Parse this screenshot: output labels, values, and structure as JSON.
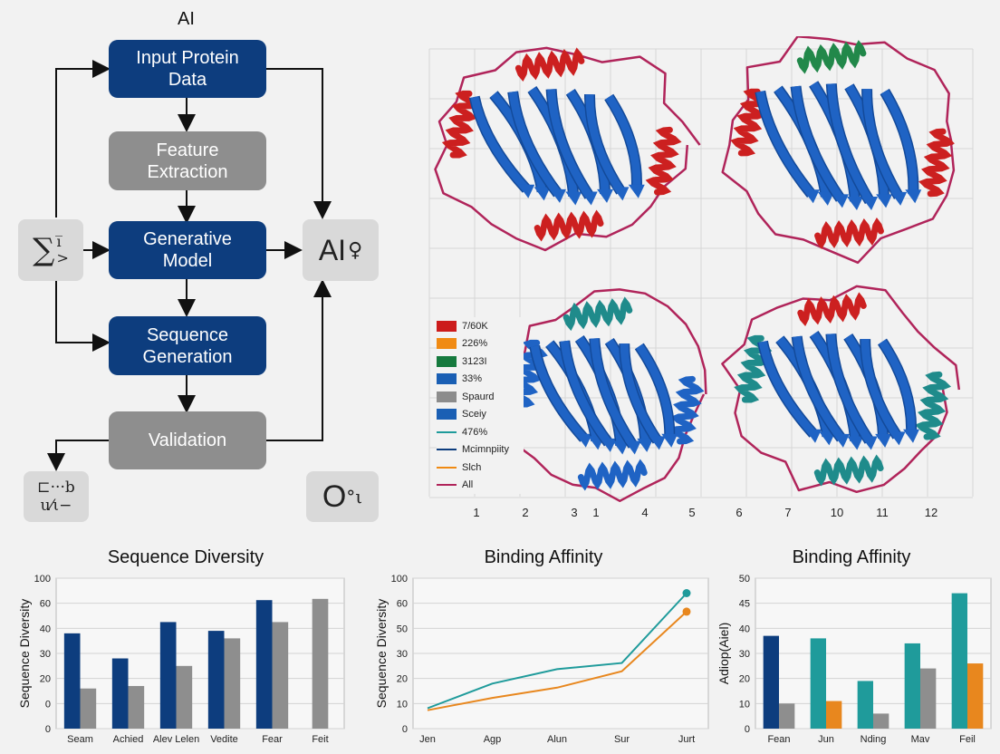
{
  "flow": {
    "title": "AI",
    "input": "Input Protein\nData",
    "feature": "Feature\nExtraction",
    "generative": "Generative\nModel",
    "sequence": "Sequence\nGeneration",
    "validation": "Validation",
    "left_symbol": "∑",
    "left_symbol_sup": "i̅",
    "left_symbol_sub": ">",
    "right_symbol": "AI",
    "right_symbol_ext": "♀",
    "bottom_left_symbol_top": "⊏···b",
    "bottom_left_symbol_bottom": "u⁄ι−",
    "bottom_right_symbol": "O",
    "bottom_right_symbol_ext": "°ι"
  },
  "structure_panel": {
    "x_ticks": [
      "1",
      "2",
      "3",
      "1",
      "4",
      "5",
      "6",
      "7",
      "10",
      "11",
      "12"
    ],
    "legend": [
      {
        "label": "7/60K",
        "color": "#cc1b1b",
        "kind": "patch"
      },
      {
        "label": "226%",
        "color": "#f08a13",
        "kind": "patch"
      },
      {
        "label": "3123I",
        "color": "#167a3e",
        "kind": "patch"
      },
      {
        "label": "33%",
        "color": "#1a5fb4",
        "kind": "patch"
      },
      {
        "label": "Spaurd",
        "color": "#8c8c8c",
        "kind": "patch"
      },
      {
        "label": "Sceiy",
        "color": "#1a5fb4",
        "kind": "patch"
      },
      {
        "label": "476%",
        "color": "#1f9b9b",
        "kind": "line"
      },
      {
        "label": "Mcimnpiity",
        "color": "#0d3d7e",
        "kind": "line"
      },
      {
        "label": "Slch",
        "color": "#f08a13",
        "kind": "line"
      },
      {
        "label": "All",
        "color": "#b0245a",
        "kind": "line"
      }
    ],
    "colors": {
      "helix": "#cc2020",
      "sheet": "#1f63c4",
      "loop": "#b0245a",
      "teal": "#1f8b8b",
      "green": "#22884a"
    }
  },
  "chart_data": [
    {
      "type": "bar",
      "title": "Sequence Diversity",
      "ylabel": "Sequence Diversity",
      "ylim": [
        0,
        100
      ],
      "yticks": [
        "0",
        "0",
        "20",
        "30",
        "40",
        "60",
        "100"
      ],
      "categories": [
        "Seam",
        "Achied",
        "Alev Lelen",
        "Vedite",
        "Fear",
        "Feit"
      ],
      "series": [
        {
          "color": "#0d3d7e",
          "values": [
            38,
            28,
            45,
            39,
            65,
            null
          ]
        },
        {
          "color": "#8e8e8e",
          "values": [
            12,
            14,
            25,
            36,
            45,
            67
          ]
        }
      ]
    },
    {
      "type": "line",
      "title": "Binding Affinity",
      "ylabel": "Sequence Diversity",
      "yticks": [
        "0",
        "10",
        "20",
        "30",
        "50",
        "60",
        "100"
      ],
      "categories": [
        "Jen",
        "Agp",
        "Alun",
        "Sur",
        "Jurt"
      ],
      "series": [
        {
          "color": "#1f9b9b",
          "values": [
            2,
            14,
            21,
            24,
            58
          ]
        },
        {
          "color": "#e8871e",
          "values": [
            1,
            7,
            12,
            20,
            49
          ]
        }
      ]
    },
    {
      "type": "bar",
      "title": "Binding Affinity",
      "ylabel": "Adiop(Aiel)",
      "yticks": [
        "0",
        "10",
        "20",
        "30",
        "40",
        "45",
        "50"
      ],
      "categories": [
        "Fean",
        "Jun",
        "Nding",
        "Mav",
        "Feil"
      ],
      "series": [
        {
          "color": "#0d3d7e",
          "values": [
            37,
            null,
            null,
            null,
            null
          ]
        },
        {
          "color": "#1f9b9b",
          "values": [
            null,
            36,
            19,
            34,
            47
          ]
        },
        {
          "color": "#8e8e8e",
          "values": [
            10,
            null,
            6,
            24,
            null
          ]
        },
        {
          "color": "#e8871e",
          "values": [
            null,
            11,
            null,
            null,
            26
          ]
        }
      ]
    }
  ]
}
